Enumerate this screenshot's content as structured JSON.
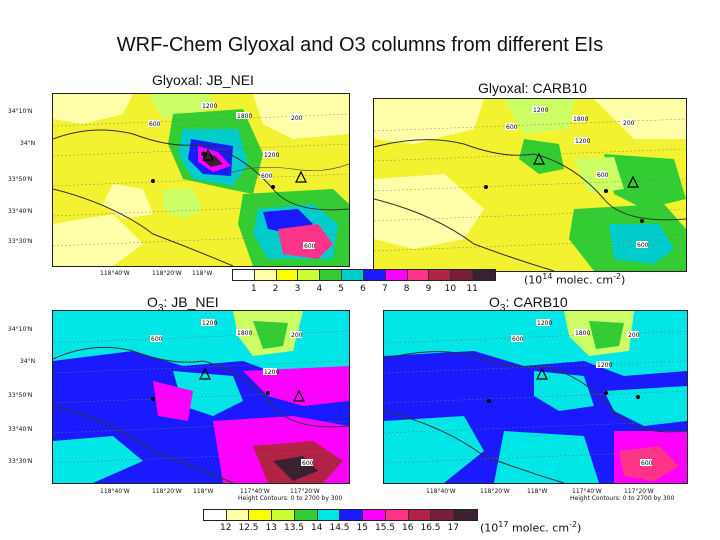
{
  "title": "WRF-Chem Glyoxal and O3 columns from different EIs",
  "panels": {
    "gly_jb": "Glyoxal: JB_NEI",
    "gly_carb": "Glyoxal: CARB10",
    "o3_jb": "O3: JB_NEI",
    "o3_carb": "O3: CARB10"
  },
  "lat_ticks": [
    "34°10'N",
    "34°N",
    "33°50'N",
    "33°40'N",
    "33°30'N"
  ],
  "lon_ticks_top": [
    "118°40'W",
    "118°20'W",
    "118°W"
  ],
  "lon_ticks_bottom": [
    "118°40'W",
    "118°20'W",
    "118°W",
    "117°40'W",
    "117°20'W"
  ],
  "height_contour": [
    "Height Contours: 0 to 2700 by 300"
  ],
  "contour_labels": [
    "1200",
    "600",
    "1800",
    "200",
    "1200",
    "600",
    "1800",
    "1200",
    "600",
    "600"
  ],
  "colorbar_gly": {
    "labels": [
      "1",
      "2",
      "3",
      "4",
      "5",
      "6",
      "7",
      "8",
      "9",
      "10",
      "11"
    ],
    "colors": [
      "#ffffff",
      "#ffffaa",
      "#ffff00",
      "#ccff33",
      "#33cc33",
      "#00cccc",
      "#1a1aff",
      "#ff00ff",
      "#ff3388",
      "#b22244",
      "#7a1f3a",
      "#3a2030"
    ],
    "unit": "(10",
    "unit_exp": "14",
    "unit_tail": " molec. cm",
    "unit_exp2": "-2",
    "unit_close": ")"
  },
  "colorbar_o3": {
    "labels": [
      "12",
      "12.5",
      "13",
      "13.5",
      "14",
      "14.5",
      "15",
      "15.5",
      "16",
      "16.5",
      "17"
    ],
    "colors": [
      "#ffffff",
      "#ffffaa",
      "#ffff00",
      "#ccff33",
      "#33cc33",
      "#00e6e6",
      "#1a1aff",
      "#ff00ff",
      "#ff3388",
      "#b22244",
      "#7a1f3a",
      "#3a2030"
    ],
    "unit": "(10",
    "unit_exp": "17",
    "unit_tail": " molec. cm",
    "unit_exp2": "-2",
    "unit_close": ")"
  }
}
